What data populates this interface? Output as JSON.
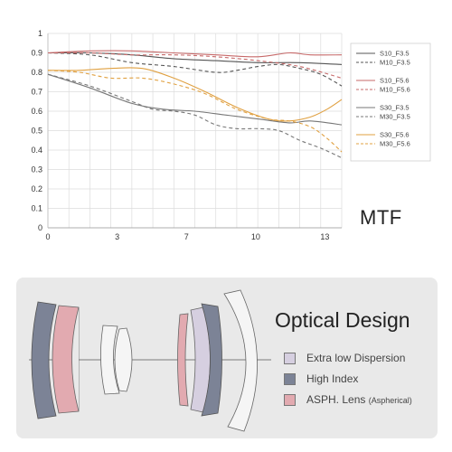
{
  "chart_data": {
    "type": "line",
    "title": "MTF",
    "xlabel": "",
    "ylabel": "",
    "xlim": [
      0,
      14
    ],
    "ylim": [
      0,
      1
    ],
    "x_ticks": [
      "0",
      "3",
      "7",
      "10",
      "13"
    ],
    "x_tick_values": [
      0,
      3.3,
      6.6,
      9.9,
      13.2
    ],
    "y_ticks": [
      "0",
      "0.1",
      "0.2",
      "0.3",
      "0.4",
      "0.5",
      "0.6",
      "0.7",
      "0.8",
      "0.9",
      "1"
    ],
    "grid": true,
    "legend_position": "right",
    "series": [
      {
        "name": "S10_F3.5",
        "color": "#555555",
        "dash": false,
        "points": [
          [
            0,
            0.9
          ],
          [
            2,
            0.9
          ],
          [
            4,
            0.89
          ],
          [
            6,
            0.87
          ],
          [
            8,
            0.86
          ],
          [
            10,
            0.85
          ],
          [
            12,
            0.85
          ],
          [
            14,
            0.84
          ]
        ]
      },
      {
        "name": "M10_F3.5",
        "color": "#555555",
        "dash": true,
        "points": [
          [
            0,
            0.9
          ],
          [
            2,
            0.89
          ],
          [
            4,
            0.85
          ],
          [
            6,
            0.83
          ],
          [
            8,
            0.8
          ],
          [
            9,
            0.81
          ],
          [
            10,
            0.83
          ],
          [
            11,
            0.84
          ],
          [
            12,
            0.82
          ],
          [
            13,
            0.79
          ],
          [
            14,
            0.73
          ]
        ]
      },
      {
        "name": "S10_F5.6",
        "color": "#c76a6a",
        "dash": false,
        "points": [
          [
            0,
            0.9
          ],
          [
            2,
            0.91
          ],
          [
            4,
            0.91
          ],
          [
            6,
            0.9
          ],
          [
            8,
            0.89
          ],
          [
            10,
            0.88
          ],
          [
            11.5,
            0.9
          ],
          [
            12.5,
            0.89
          ],
          [
            14,
            0.89
          ]
        ]
      },
      {
        "name": "M10_F5.6",
        "color": "#c76a6a",
        "dash": true,
        "points": [
          [
            0,
            0.9
          ],
          [
            2,
            0.9
          ],
          [
            4,
            0.89
          ],
          [
            6,
            0.89
          ],
          [
            8,
            0.88
          ],
          [
            10,
            0.86
          ],
          [
            12,
            0.83
          ],
          [
            14,
            0.77
          ]
        ]
      },
      {
        "name": "S30_F3.5",
        "color": "#777777",
        "dash": false,
        "points": [
          [
            0,
            0.79
          ],
          [
            2,
            0.72
          ],
          [
            4,
            0.64
          ],
          [
            5.5,
            0.61
          ],
          [
            7,
            0.6
          ],
          [
            8.5,
            0.58
          ],
          [
            10,
            0.56
          ],
          [
            11.5,
            0.54
          ],
          [
            12.5,
            0.55
          ],
          [
            14,
            0.53
          ]
        ]
      },
      {
        "name": "M30_F3.5",
        "color": "#777777",
        "dash": true,
        "points": [
          [
            0,
            0.79
          ],
          [
            2,
            0.73
          ],
          [
            4,
            0.65
          ],
          [
            5,
            0.61
          ],
          [
            6,
            0.6
          ],
          [
            7,
            0.58
          ],
          [
            8,
            0.53
          ],
          [
            9,
            0.51
          ],
          [
            10,
            0.51
          ],
          [
            11,
            0.5
          ],
          [
            12,
            0.45
          ],
          [
            13,
            0.41
          ],
          [
            14,
            0.36
          ]
        ]
      },
      {
        "name": "S30_F5.6",
        "color": "#e0a040",
        "dash": false,
        "points": [
          [
            0,
            0.81
          ],
          [
            1.5,
            0.81
          ],
          [
            3,
            0.82
          ],
          [
            4.5,
            0.82
          ],
          [
            6,
            0.77
          ],
          [
            7.5,
            0.7
          ],
          [
            9,
            0.62
          ],
          [
            10.5,
            0.56
          ],
          [
            11.5,
            0.55
          ],
          [
            12.5,
            0.57
          ],
          [
            13.3,
            0.61
          ],
          [
            14,
            0.66
          ]
        ]
      },
      {
        "name": "M30_F5.6",
        "color": "#e0a040",
        "dash": true,
        "points": [
          [
            0,
            0.81
          ],
          [
            1.5,
            0.8
          ],
          [
            3,
            0.77
          ],
          [
            4.5,
            0.77
          ],
          [
            6,
            0.74
          ],
          [
            7.5,
            0.69
          ],
          [
            9,
            0.61
          ],
          [
            10.5,
            0.56
          ],
          [
            11.5,
            0.55
          ],
          [
            12.5,
            0.52
          ],
          [
            13.3,
            0.46
          ],
          [
            14,
            0.39
          ]
        ]
      }
    ]
  },
  "optical_design": {
    "title": "Optical Design",
    "legend": [
      {
        "label": "Extra low Dispersion",
        "small": "",
        "color": "#d6cfe0"
      },
      {
        "label": "High Index",
        "small": "",
        "color": "#7c8396"
      },
      {
        "label": "ASPH. Lens ",
        "small": "(Aspherical)",
        "color": "#e2aab0"
      }
    ]
  }
}
